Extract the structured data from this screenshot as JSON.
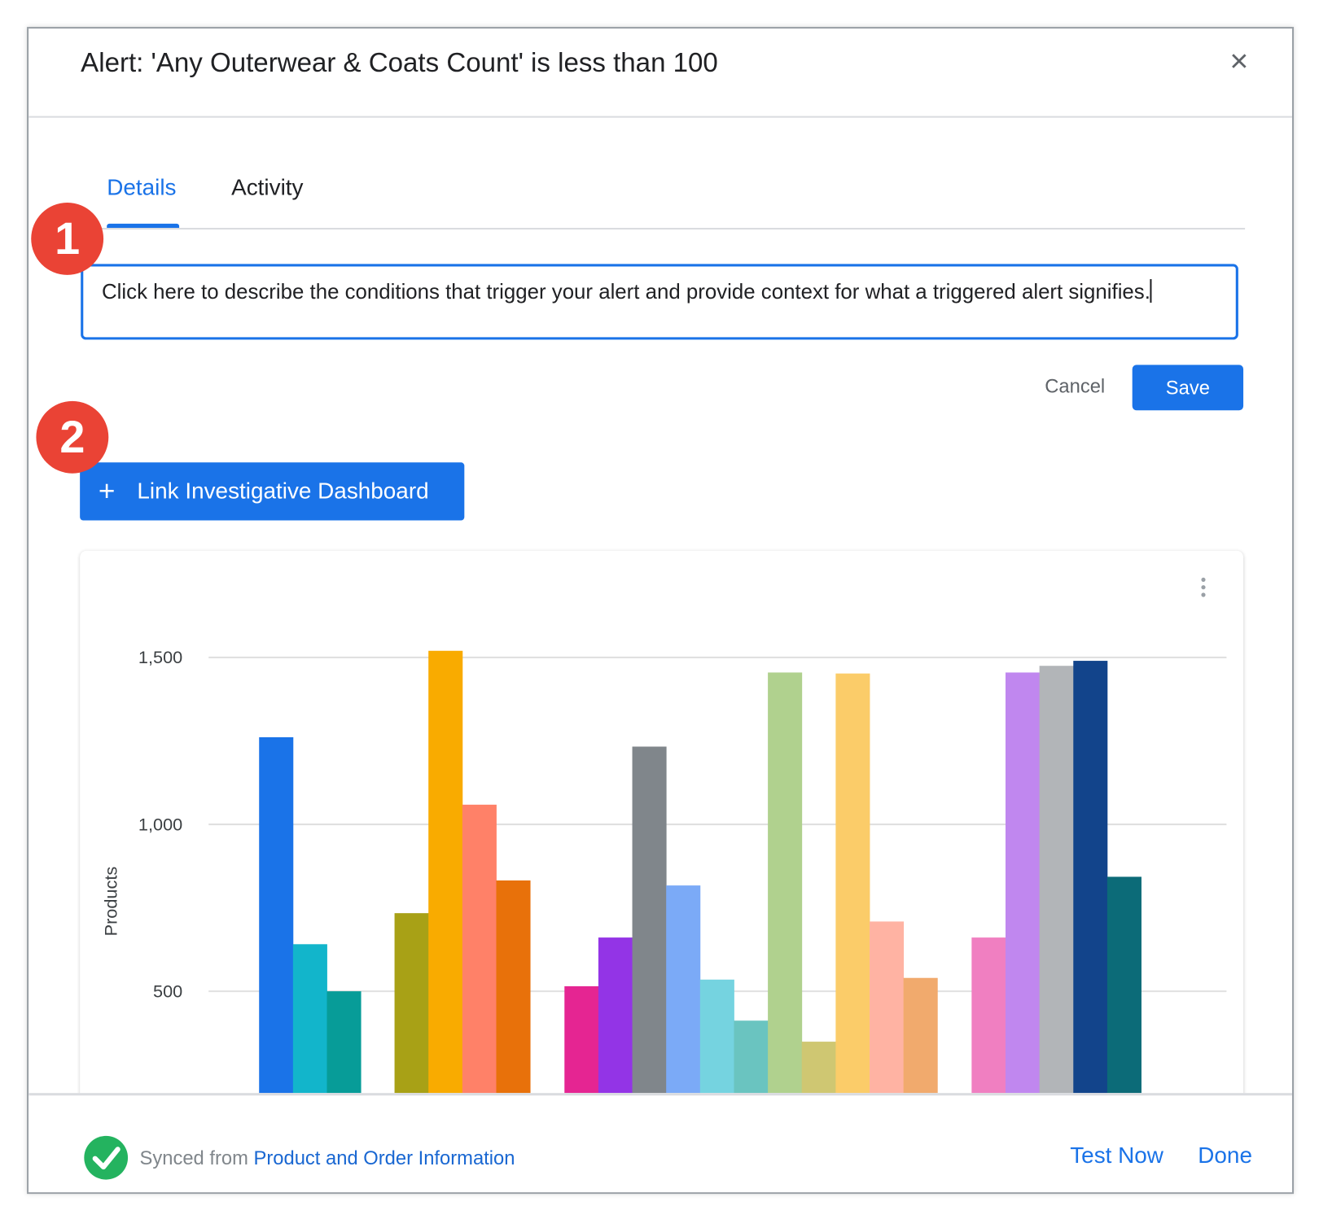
{
  "dialog": {
    "title": "Alert: 'Any Outerwear & Coats Count' is less than 100",
    "close_icon": "close-icon"
  },
  "tabs": [
    {
      "label": "Details",
      "active": true
    },
    {
      "label": "Activity",
      "active": false
    }
  ],
  "badges": [
    "1",
    "2"
  ],
  "description": {
    "value": "Click here to describe the conditions that trigger your alert and provide context for what a triggered alert signifies."
  },
  "actions": {
    "cancel": "Cancel",
    "save": "Save"
  },
  "link_dashboard": {
    "icon": "plus-icon",
    "label": "Link Investigative Dashboard"
  },
  "footer": {
    "synced_prefix": "Synced from",
    "synced_source": "Product and Order Information",
    "test_now": "Test Now",
    "done": "Done"
  },
  "colors": {
    "accent": "#1a73e8",
    "badge": "#ea4335",
    "success": "#24b35f"
  },
  "chart_data": {
    "type": "bar",
    "ylabel": "Products",
    "yticks": [
      "500",
      "1,000",
      "1,500"
    ],
    "ytick_values": [
      500,
      1000,
      1500
    ],
    "grid": true,
    "groups": [
      {
        "values": [
          1261,
          641,
          500
        ],
        "colors": [
          "#1a73e8",
          "#12b5cb",
          "#079c98"
        ]
      },
      {
        "values": [
          734,
          1520,
          1059,
          832
        ],
        "colors": [
          "#a8a116",
          "#f9ab00",
          "#ff8168",
          "#e8710a"
        ]
      },
      {
        "values": [
          515,
          661,
          1233,
          817,
          535,
          412,
          1455,
          349,
          1452,
          709,
          540
        ],
        "colors": [
          "#e52592",
          "#9334e6",
          "#80868b",
          "#7baaf7",
          "#75d3e0",
          "#6ac4c0",
          "#b0d18e",
          "#cfc772",
          "#fbcc69",
          "#ffb3a3",
          "#f1aa6d"
        ]
      },
      {
        "values": [
          661,
          1455,
          1475,
          1490,
          843
        ],
        "colors": [
          "#f07fc1",
          "#c087ef",
          "#b2b5b8",
          "#12448b",
          "#0c6b78"
        ]
      }
    ]
  }
}
